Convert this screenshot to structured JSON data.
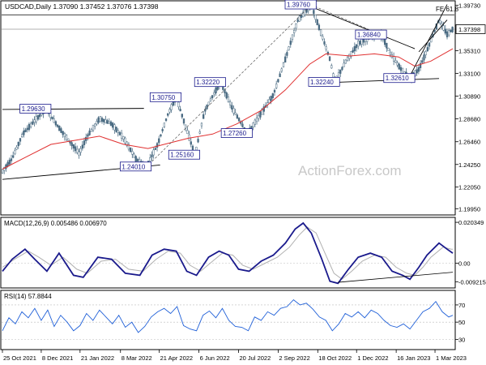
{
  "chart_data": {
    "type": "candlestick",
    "header": {
      "symbol_line": "USDCAD,Daily  1.37090 1.37452 1.37076 1.37398",
      "fib_label": "FE 61.8",
      "watermark": "ActionForex.com"
    },
    "price_panel": {
      "ylim": [
        1.195,
        1.4
      ],
      "yticks": [
        "1.39730",
        "1.37398",
        "1.35310",
        "1.33100",
        "1.30890",
        "1.28680",
        "1.26460",
        "1.24250",
        "1.22050",
        "1.19950"
      ],
      "ytick_values": [
        1.3973,
        1.37398,
        1.3531,
        1.331,
        1.3089,
        1.2868,
        1.2646,
        1.2425,
        1.2205,
        1.1995
      ],
      "current_label": "1.37398",
      "fe_level": 1.388,
      "ma_color": "#e03030",
      "candle_color": "#4a6b82",
      "annotations": [
        {
          "label": "1.29630",
          "t": 54,
          "price": 1.2963
        },
        {
          "label": "1.24010",
          "t": 178,
          "price": 1.2401
        },
        {
          "label": "1.30750",
          "t": 215,
          "price": 1.3075
        },
        {
          "label": "1.25160",
          "t": 238,
          "price": 1.2516
        },
        {
          "label": "1.32220",
          "t": 270,
          "price": 1.3222
        },
        {
          "label": "1.27260",
          "t": 303,
          "price": 1.2726
        },
        {
          "label": "1.39760",
          "t": 382,
          "price": 1.3976
        },
        {
          "label": "1.32240",
          "t": 411,
          "price": 1.3224
        },
        {
          "label": "1.36840",
          "t": 469,
          "price": 1.3684
        },
        {
          "label": "1.32610",
          "t": 504,
          "price": 1.3261
        }
      ],
      "price_path": [
        [
          0,
          1.236
        ],
        [
          12,
          1.248
        ],
        [
          25,
          1.272
        ],
        [
          40,
          1.285
        ],
        [
          54,
          1.2963
        ],
        [
          70,
          1.278
        ],
        [
          95,
          1.253
        ],
        [
          105,
          1.27
        ],
        [
          120,
          1.287
        ],
        [
          135,
          1.282
        ],
        [
          150,
          1.268
        ],
        [
          165,
          1.248
        ],
        [
          178,
          1.2401
        ],
        [
          192,
          1.262
        ],
        [
          205,
          1.292
        ],
        [
          215,
          1.3075
        ],
        [
          228,
          1.276
        ],
        [
          238,
          1.2516
        ],
        [
          250,
          1.294
        ],
        [
          262,
          1.312
        ],
        [
          270,
          1.3222
        ],
        [
          285,
          1.296
        ],
        [
          303,
          1.2726
        ],
        [
          318,
          1.29
        ],
        [
          335,
          1.31
        ],
        [
          350,
          1.345
        ],
        [
          365,
          1.382
        ],
        [
          382,
          1.3976
        ],
        [
          395,
          1.368
        ],
        [
          405,
          1.345
        ],
        [
          411,
          1.3224
        ],
        [
          425,
          1.343
        ],
        [
          440,
          1.36
        ],
        [
          455,
          1.366
        ],
        [
          469,
          1.3684
        ],
        [
          480,
          1.35
        ],
        [
          492,
          1.336
        ],
        [
          504,
          1.3261
        ],
        [
          515,
          1.335
        ],
        [
          525,
          1.353
        ],
        [
          540,
          1.383
        ],
        [
          550,
          1.369
        ],
        [
          557,
          1.374
        ]
      ],
      "ma_path": [
        [
          0,
          1.238
        ],
        [
          30,
          1.25
        ],
        [
          60,
          1.262
        ],
        [
          90,
          1.266
        ],
        [
          120,
          1.27
        ],
        [
          150,
          1.262
        ],
        [
          180,
          1.258
        ],
        [
          200,
          1.262
        ],
        [
          230,
          1.268
        ],
        [
          260,
          1.272
        ],
        [
          290,
          1.282
        ],
        [
          320,
          1.295
        ],
        [
          350,
          1.315
        ],
        [
          380,
          1.34
        ],
        [
          400,
          1.35
        ],
        [
          430,
          1.348
        ],
        [
          460,
          1.35
        ],
        [
          490,
          1.347
        ],
        [
          510,
          1.338
        ],
        [
          530,
          1.343
        ],
        [
          557,
          1.355
        ]
      ],
      "trendlines": [
        {
          "from": [
            0,
            1.296
          ],
          "to": [
            175,
            1.297
          ]
        },
        {
          "from": [
            0,
            1.228
          ],
          "to": [
            195,
            1.242
          ]
        },
        {
          "from": [
            375,
            1.398
          ],
          "to": [
            510,
            1.355
          ]
        },
        {
          "from": [
            400,
            1.322
          ],
          "to": [
            540,
            1.326
          ]
        },
        {
          "from": [
            505,
            1.33
          ],
          "to": [
            550,
            1.398
          ]
        },
        {
          "from": [
            515,
            1.352
          ],
          "to": [
            550,
            1.383
          ]
        }
      ],
      "dashed_lines": [
        {
          "from": [
            178,
            1.2401
          ],
          "to": [
            382,
            1.3976
          ]
        },
        {
          "from": [
            382,
            1.3976
          ],
          "to": [
            469,
            1.3684
          ]
        }
      ]
    },
    "macd_panel": {
      "title": "MACD(12,26,9) 0.005486 0.006970",
      "ylim": [
        -0.0115,
        0.022
      ],
      "yticks": [
        "0.020349",
        "0.00",
        "-0.009215"
      ],
      "ytick_values": [
        0.020349,
        0.0,
        -0.009215
      ],
      "value_label": "0.00",
      "macd_path": [
        [
          0,
          -0.004
        ],
        [
          12,
          0.002
        ],
        [
          28,
          0.007
        ],
        [
          40,
          0.002
        ],
        [
          55,
          -0.004
        ],
        [
          70,
          0.005
        ],
        [
          88,
          -0.006
        ],
        [
          100,
          -0.007
        ],
        [
          118,
          0.003
        ],
        [
          135,
          0.002
        ],
        [
          152,
          -0.005
        ],
        [
          170,
          -0.006
        ],
        [
          185,
          0.004
        ],
        [
          200,
          0.007
        ],
        [
          215,
          0.006
        ],
        [
          228,
          -0.004
        ],
        [
          240,
          -0.006
        ],
        [
          255,
          0.003
        ],
        [
          268,
          0.006
        ],
        [
          280,
          0.004
        ],
        [
          292,
          -0.003
        ],
        [
          305,
          -0.004
        ],
        [
          320,
          0.001
        ],
        [
          335,
          0.004
        ],
        [
          350,
          0.01
        ],
        [
          362,
          0.017
        ],
        [
          372,
          0.02
        ],
        [
          382,
          0.015
        ],
        [
          395,
          0.002
        ],
        [
          405,
          -0.009
        ],
        [
          415,
          -0.01
        ],
        [
          428,
          -0.003
        ],
        [
          440,
          0.003
        ],
        [
          455,
          0.005
        ],
        [
          469,
          0.003
        ],
        [
          482,
          -0.004
        ],
        [
          495,
          -0.006
        ],
        [
          504,
          -0.008
        ],
        [
          515,
          -0.002
        ],
        [
          525,
          0.004
        ],
        [
          540,
          0.01
        ],
        [
          550,
          0.007
        ],
        [
          557,
          0.005
        ]
      ],
      "signal_path": [
        [
          0,
          -0.002
        ],
        [
          15,
          0.002
        ],
        [
          32,
          0.006
        ],
        [
          45,
          0.003
        ],
        [
          60,
          -0.001
        ],
        [
          75,
          0.003
        ],
        [
          92,
          -0.003
        ],
        [
          105,
          -0.005
        ],
        [
          122,
          0.001
        ],
        [
          140,
          0.002
        ],
        [
          156,
          -0.003
        ],
        [
          174,
          -0.004
        ],
        [
          190,
          0.002
        ],
        [
          205,
          0.006
        ],
        [
          220,
          0.005
        ],
        [
          232,
          -0.001
        ],
        [
          245,
          -0.004
        ],
        [
          260,
          0.001
        ],
        [
          272,
          0.005
        ],
        [
          285,
          0.004
        ],
        [
          297,
          -0.001
        ],
        [
          310,
          -0.003
        ],
        [
          325,
          0.0
        ],
        [
          340,
          0.003
        ],
        [
          355,
          0.008
        ],
        [
          367,
          0.014
        ],
        [
          377,
          0.018
        ],
        [
          388,
          0.015
        ],
        [
          400,
          0.004
        ],
        [
          410,
          -0.005
        ],
        [
          420,
          -0.008
        ],
        [
          432,
          -0.004
        ],
        [
          445,
          0.001
        ],
        [
          460,
          0.004
        ],
        [
          474,
          0.003
        ],
        [
          487,
          -0.002
        ],
        [
          500,
          -0.005
        ],
        [
          510,
          -0.006
        ],
        [
          520,
          -0.002
        ],
        [
          530,
          0.003
        ],
        [
          545,
          0.008
        ],
        [
          555,
          0.007
        ],
        [
          557,
          0.007
        ]
      ],
      "trendline": {
        "from": [
          415,
          -0.0095
        ],
        "to": [
          557,
          -0.0045
        ]
      },
      "macd_color": "#1a1a8c",
      "signal_color": "#b0b0b0"
    },
    "rsi_panel": {
      "title": "RSI(14) 57.8844",
      "ylim": [
        20,
        85
      ],
      "yticks": [
        "70",
        "50",
        "30"
      ],
      "ytick_values": [
        70,
        50,
        30
      ],
      "levels": [
        70,
        50,
        30
      ],
      "rsi_path": [
        [
          0,
          40
        ],
        [
          8,
          55
        ],
        [
          16,
          48
        ],
        [
          24,
          62
        ],
        [
          32,
          55
        ],
        [
          40,
          66
        ],
        [
          48,
          52
        ],
        [
          56,
          64
        ],
        [
          64,
          45
        ],
        [
          72,
          58
        ],
        [
          80,
          50
        ],
        [
          88,
          40
        ],
        [
          96,
          46
        ],
        [
          104,
          60
        ],
        [
          112,
          52
        ],
        [
          120,
          64
        ],
        [
          128,
          56
        ],
        [
          136,
          48
        ],
        [
          144,
          58
        ],
        [
          152,
          44
        ],
        [
          160,
          50
        ],
        [
          168,
          38
        ],
        [
          176,
          45
        ],
        [
          184,
          56
        ],
        [
          192,
          62
        ],
        [
          200,
          66
        ],
        [
          208,
          60
        ],
        [
          216,
          68
        ],
        [
          224,
          46
        ],
        [
          232,
          42
        ],
        [
          240,
          40
        ],
        [
          248,
          58
        ],
        [
          256,
          63
        ],
        [
          264,
          55
        ],
        [
          272,
          66
        ],
        [
          280,
          52
        ],
        [
          288,
          45
        ],
        [
          296,
          44
        ],
        [
          304,
          40
        ],
        [
          312,
          56
        ],
        [
          320,
          52
        ],
        [
          328,
          62
        ],
        [
          336,
          58
        ],
        [
          344,
          66
        ],
        [
          352,
          68
        ],
        [
          360,
          76
        ],
        [
          368,
          70
        ],
        [
          376,
          72
        ],
        [
          384,
          65
        ],
        [
          392,
          56
        ],
        [
          400,
          52
        ],
        [
          408,
          40
        ],
        [
          416,
          48
        ],
        [
          424,
          60
        ],
        [
          432,
          56
        ],
        [
          440,
          62
        ],
        [
          448,
          55
        ],
        [
          456,
          64
        ],
        [
          464,
          60
        ],
        [
          472,
          52
        ],
        [
          480,
          46
        ],
        [
          488,
          44
        ],
        [
          496,
          48
        ],
        [
          504,
          42
        ],
        [
          512,
          52
        ],
        [
          520,
          62
        ],
        [
          528,
          66
        ],
        [
          536,
          74
        ],
        [
          544,
          62
        ],
        [
          552,
          56
        ],
        [
          557,
          58
        ]
      ],
      "color": "#2060d8"
    },
    "x_axis": {
      "ticks": [
        {
          "label": "25 Oct 2021",
          "t": 0
        },
        {
          "label": "8 Dec 2021",
          "t": 48
        },
        {
          "label": "21 Jan 2022",
          "t": 96
        },
        {
          "label": "8 Mar 2022",
          "t": 146
        },
        {
          "label": "21 Apr 2022",
          "t": 194
        },
        {
          "label": "6 Jun 2022",
          "t": 243
        },
        {
          "label": "20 Jul 2022",
          "t": 292
        },
        {
          "label": "2 Sep 2022",
          "t": 341
        },
        {
          "label": "18 Oct 2022",
          "t": 390
        },
        {
          "label": "1 Dec 2022",
          "t": 438
        },
        {
          "label": "16 Jan 2023",
          "t": 487
        },
        {
          "label": "1 Mar 2023",
          "t": 535
        }
      ],
      "t_range": [
        0,
        557
      ]
    }
  }
}
